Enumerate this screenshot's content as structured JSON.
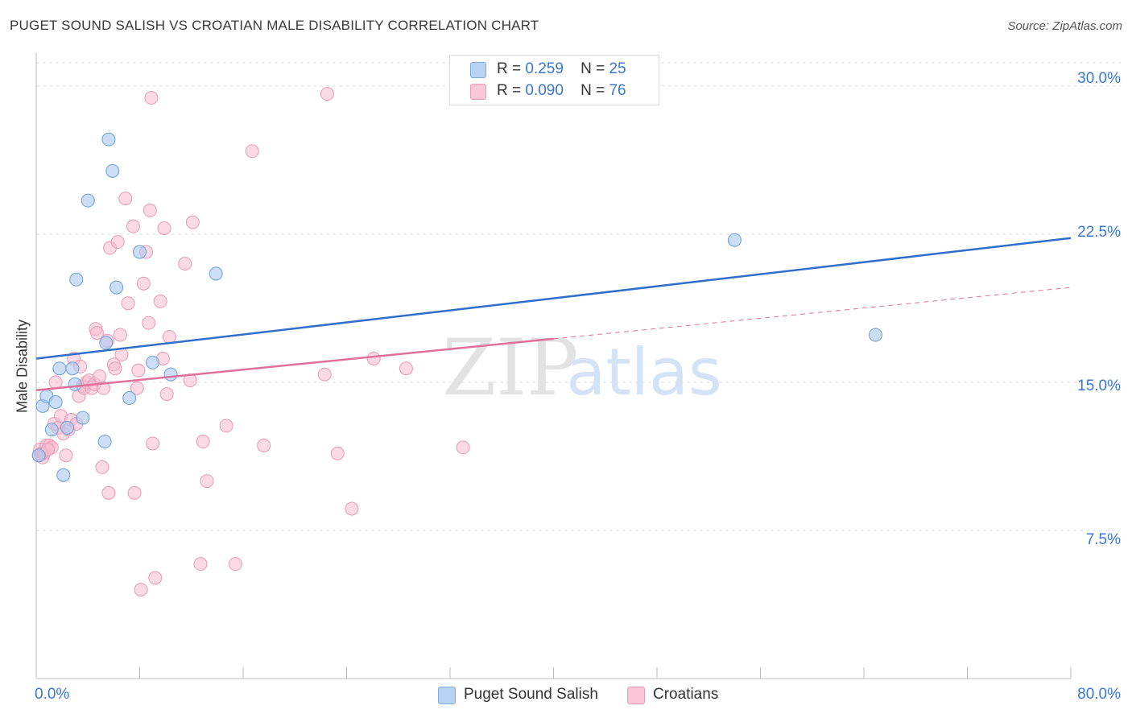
{
  "header": {
    "title": "PUGET SOUND SALISH VS CROATIAN MALE DISABILITY CORRELATION CHART",
    "source": "Source: ZipAtlas.com"
  },
  "watermark": {
    "zip": "ZIP",
    "atlas": "atlas"
  },
  "legend_top": {
    "rows": [
      {
        "r_label": "R =",
        "r_value": "0.259",
        "n_label": "N =",
        "n_value": "25"
      },
      {
        "r_label": "R =",
        "r_value": "0.090",
        "n_label": "N =",
        "n_value": "76"
      }
    ]
  },
  "colors": {
    "blue_fill": "#a9c8f0",
    "blue_stroke": "#6a9fd8",
    "blue_line": "#2f6fcb",
    "pink_fill": "#f7bcd0",
    "pink_stroke": "#e89ab6",
    "pink_line": "#e0709a",
    "tick_text": "#3a77d0",
    "grid": "#dddddd"
  },
  "chart_data": {
    "type": "scatter",
    "title": "PUGET SOUND SALISH VS CROATIAN MALE DISABILITY CORRELATION CHART",
    "xlabel": "",
    "ylabel": "Male Disability",
    "xlim": [
      0,
      80
    ],
    "ylim": [
      0,
      31.5
    ],
    "x_tick_labels": [
      "0.0%",
      "80.0%"
    ],
    "y_ticks": [
      7.5,
      15.0,
      22.5,
      30.0
    ],
    "y_tick_labels": [
      "7.5%",
      "15.0%",
      "22.5%",
      "30.0%"
    ],
    "grid": true,
    "legend_position": "bottom",
    "series": [
      {
        "name": "Puget Sound Salish",
        "color": "#a9c8f0",
        "trend": {
          "x": [
            0,
            80
          ],
          "y": [
            16.2,
            22.3
          ],
          "dashed_from": null
        },
        "points": [
          [
            0.5,
            13.8
          ],
          [
            0.8,
            14.3
          ],
          [
            1.2,
            12.6
          ],
          [
            1.5,
            14.0
          ],
          [
            1.8,
            15.7
          ],
          [
            2.1,
            10.3
          ],
          [
            2.4,
            12.7
          ],
          [
            2.8,
            15.7
          ],
          [
            3.0,
            14.9
          ],
          [
            3.6,
            13.2
          ],
          [
            4.0,
            24.2
          ],
          [
            5.3,
            12.0
          ],
          [
            5.4,
            17.0
          ],
          [
            5.6,
            27.3
          ],
          [
            5.9,
            25.7
          ],
          [
            6.2,
            19.8
          ],
          [
            7.2,
            14.2
          ],
          [
            8.0,
            21.6
          ],
          [
            9.0,
            16.0
          ],
          [
            10.4,
            15.4
          ],
          [
            13.9,
            20.5
          ],
          [
            3.1,
            20.2
          ],
          [
            54.0,
            22.2
          ],
          [
            64.9,
            17.4
          ],
          [
            0.2,
            11.3
          ]
        ]
      },
      {
        "name": "Croatians",
        "color": "#f7bcd0",
        "trend": {
          "x": [
            0,
            80
          ],
          "y": [
            14.6,
            19.8
          ],
          "solid_to": 40
        },
        "points": [
          [
            0.2,
            11.3
          ],
          [
            0.3,
            11.6
          ],
          [
            0.5,
            11.2
          ],
          [
            0.6,
            11.4
          ],
          [
            0.8,
            11.8
          ],
          [
            1.0,
            11.8
          ],
          [
            1.2,
            11.7
          ],
          [
            1.4,
            12.9
          ],
          [
            1.5,
            15.0
          ],
          [
            1.7,
            12.7
          ],
          [
            1.9,
            13.3
          ],
          [
            2.1,
            12.4
          ],
          [
            2.3,
            11.3
          ],
          [
            2.5,
            12.6
          ],
          [
            2.7,
            13.1
          ],
          [
            2.9,
            16.2
          ],
          [
            3.1,
            12.9
          ],
          [
            3.3,
            14.3
          ],
          [
            3.4,
            15.8
          ],
          [
            3.6,
            14.8
          ],
          [
            3.7,
            14.7
          ],
          [
            3.9,
            15.0
          ],
          [
            4.1,
            15.1
          ],
          [
            4.3,
            14.7
          ],
          [
            4.5,
            14.9
          ],
          [
            4.6,
            17.7
          ],
          [
            4.7,
            17.5
          ],
          [
            4.9,
            15.3
          ],
          [
            5.1,
            10.7
          ],
          [
            5.2,
            14.7
          ],
          [
            5.5,
            17.1
          ],
          [
            5.6,
            9.4
          ],
          [
            5.7,
            21.8
          ],
          [
            6.0,
            15.9
          ],
          [
            6.1,
            15.7
          ],
          [
            6.3,
            22.1
          ],
          [
            6.5,
            17.4
          ],
          [
            6.6,
            16.4
          ],
          [
            6.9,
            24.3
          ],
          [
            7.1,
            19.0
          ],
          [
            7.5,
            22.9
          ],
          [
            7.6,
            9.4
          ],
          [
            7.8,
            14.7
          ],
          [
            7.9,
            15.6
          ],
          [
            8.1,
            4.5
          ],
          [
            8.3,
            20.0
          ],
          [
            8.5,
            21.6
          ],
          [
            8.7,
            18.0
          ],
          [
            8.8,
            23.7
          ],
          [
            8.9,
            29.4
          ],
          [
            9.0,
            11.9
          ],
          [
            9.2,
            5.1
          ],
          [
            9.6,
            19.1
          ],
          [
            9.8,
            16.2
          ],
          [
            9.9,
            22.8
          ],
          [
            10.1,
            14.4
          ],
          [
            10.3,
            17.3
          ],
          [
            11.5,
            21.0
          ],
          [
            11.9,
            15.1
          ],
          [
            12.1,
            23.1
          ],
          [
            12.7,
            5.8
          ],
          [
            12.9,
            12.0
          ],
          [
            13.2,
            10.0
          ],
          [
            14.7,
            12.8
          ],
          [
            15.4,
            5.8
          ],
          [
            16.7,
            26.7
          ],
          [
            17.6,
            11.8
          ],
          [
            22.5,
            29.6
          ],
          [
            22.3,
            15.4
          ],
          [
            23.3,
            11.4
          ],
          [
            24.4,
            8.6
          ],
          [
            26.1,
            16.2
          ],
          [
            28.6,
            15.7
          ],
          [
            33.0,
            11.7
          ],
          [
            0.4,
            11.4
          ],
          [
            0.9,
            11.6
          ]
        ]
      }
    ]
  },
  "bottom_legend": [
    "Puget Sound Salish",
    "Croatians"
  ]
}
